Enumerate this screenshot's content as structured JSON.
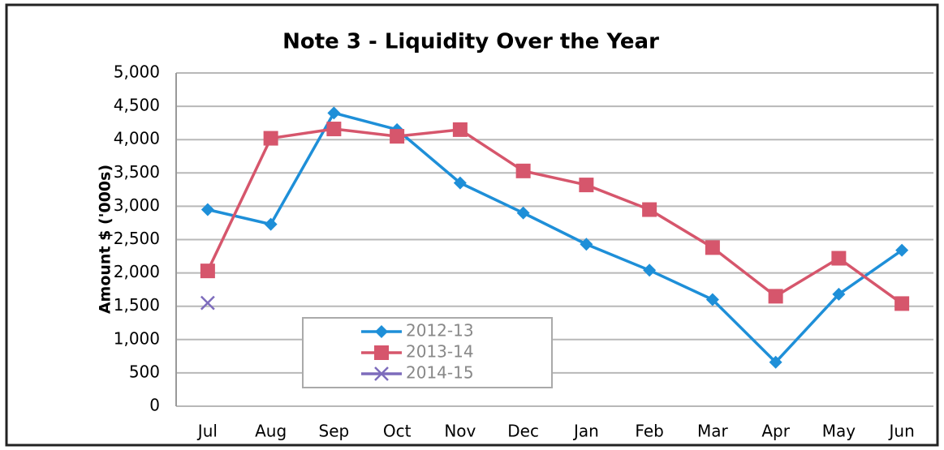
{
  "chart_data": {
    "type": "line",
    "title": "Note 3 - Liquidity Over the Year",
    "y_label": "Amount $ ('000s)",
    "categories": [
      "Jul",
      "Aug",
      "Sep",
      "Oct",
      "Nov",
      "Dec",
      "Jan",
      "Feb",
      "Mar",
      "Apr",
      "May",
      "Jun"
    ],
    "series": [
      {
        "name": "2012-13",
        "color": "#1e8fd8",
        "marker": "diamond",
        "values": [
          2950,
          2730,
          4400,
          4150,
          3350,
          2900,
          2430,
          2040,
          1600,
          660,
          1680,
          2340
        ]
      },
      {
        "name": "2013-14",
        "color": "#d6566c",
        "marker": "square",
        "values": [
          2030,
          4020,
          4160,
          4050,
          4150,
          3530,
          3320,
          2950,
          2380,
          1650,
          2220,
          1540
        ]
      },
      {
        "name": "2014-15",
        "color": "#7d6cbc",
        "marker": "x",
        "values": [
          1550,
          null,
          null,
          null,
          null,
          null,
          null,
          null,
          null,
          null,
          null,
          null
        ]
      }
    ],
    "ylim": [
      0,
      5000
    ],
    "yticks": [
      0,
      500,
      {
        "value": 1000,
        "label": "1,000"
      },
      {
        "value": 1500,
        "label": "1,500"
      },
      {
        "value": 2000,
        "label": "2,000"
      },
      {
        "value": 2500,
        "label": "2,500"
      },
      {
        "value": 3000,
        "label": "3,000"
      },
      {
        "value": 3500,
        "label": "3,500"
      },
      {
        "value": 4000,
        "label": "4,000"
      },
      {
        "value": 4500,
        "label": "4,500"
      },
      {
        "value": 5000,
        "label": "5,000"
      }
    ],
    "grid": true
  }
}
